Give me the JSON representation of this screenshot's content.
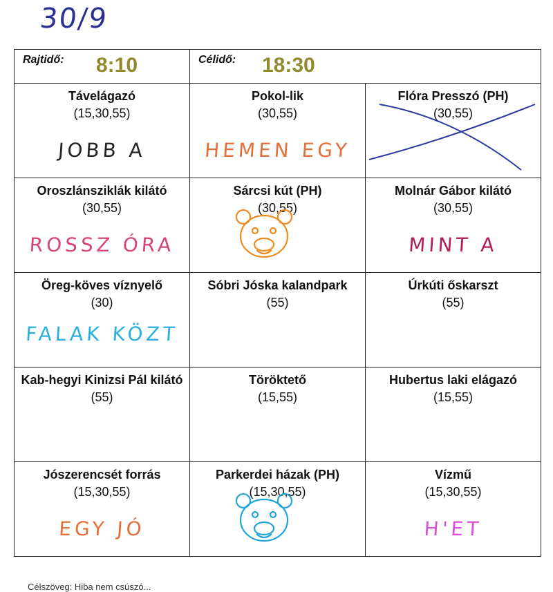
{
  "date_note": "30/9",
  "header": {
    "start_label": "Rajtidő:",
    "start_time": "8:10",
    "finish_label": "Célidő:",
    "finish_time": "18:30"
  },
  "checkpoints": [
    [
      {
        "name": "Távelágazó",
        "slots": "(15,30,55)",
        "note": "JOBB A",
        "note_color": "#222222"
      },
      {
        "name": "Pokol-lik",
        "slots": "(30,55)",
        "note": "HEMEN EGY",
        "note_color": "#e2703a"
      },
      {
        "name": "Flóra Presszó (PH)",
        "slots": "(30,55)",
        "crossed": true
      }
    ],
    [
      {
        "name": "Oroszlánsziklák kilátó",
        "slots": "(30,55)",
        "note": "ROSSZ ÓRA",
        "note_color": "#d8437a"
      },
      {
        "name": "Sárcsi kút (PH)",
        "slots": "(30,55)",
        "stamp": "lion-stamp",
        "stamp_color": "#f08a1e"
      },
      {
        "name": "Molnár Gábor kilátó",
        "slots": "(30,55)",
        "note": "MINT A",
        "note_color": "#b21e5a"
      }
    ],
    [
      {
        "name": "Öreg-köves víznyelő",
        "slots": "(30)",
        "note": "FALAK KÖZT",
        "note_color": "#2ab0de"
      },
      {
        "name": "Sóbri Jóska kalandpark",
        "slots": "(55)"
      },
      {
        "name": "Úrkúti őskarszt",
        "slots": "(55)"
      }
    ],
    [
      {
        "name": "Kab-hegyi Kinizsi Pál kilátó",
        "slots": "(55)"
      },
      {
        "name": "Töröktető",
        "slots": "(15,55)"
      },
      {
        "name": "Hubertus laki elágazó",
        "slots": "(15,55)"
      }
    ],
    [
      {
        "name": "Jószerencsét forrás",
        "slots": "(15,30,55)",
        "note": "EGY JÓ",
        "note_color": "#e2703a"
      },
      {
        "name": "Parkerdei házak (PH)",
        "slots": "(15,30,55)",
        "stamp": "cow-stamp",
        "stamp_color": "#1fa5d8"
      },
      {
        "name": "Vízmű",
        "slots": "(15,30,55)",
        "note": "H'ET",
        "note_color": "#d94fd6"
      }
    ]
  ],
  "footer": "Célszöveg: Hiba nem csúszó..."
}
